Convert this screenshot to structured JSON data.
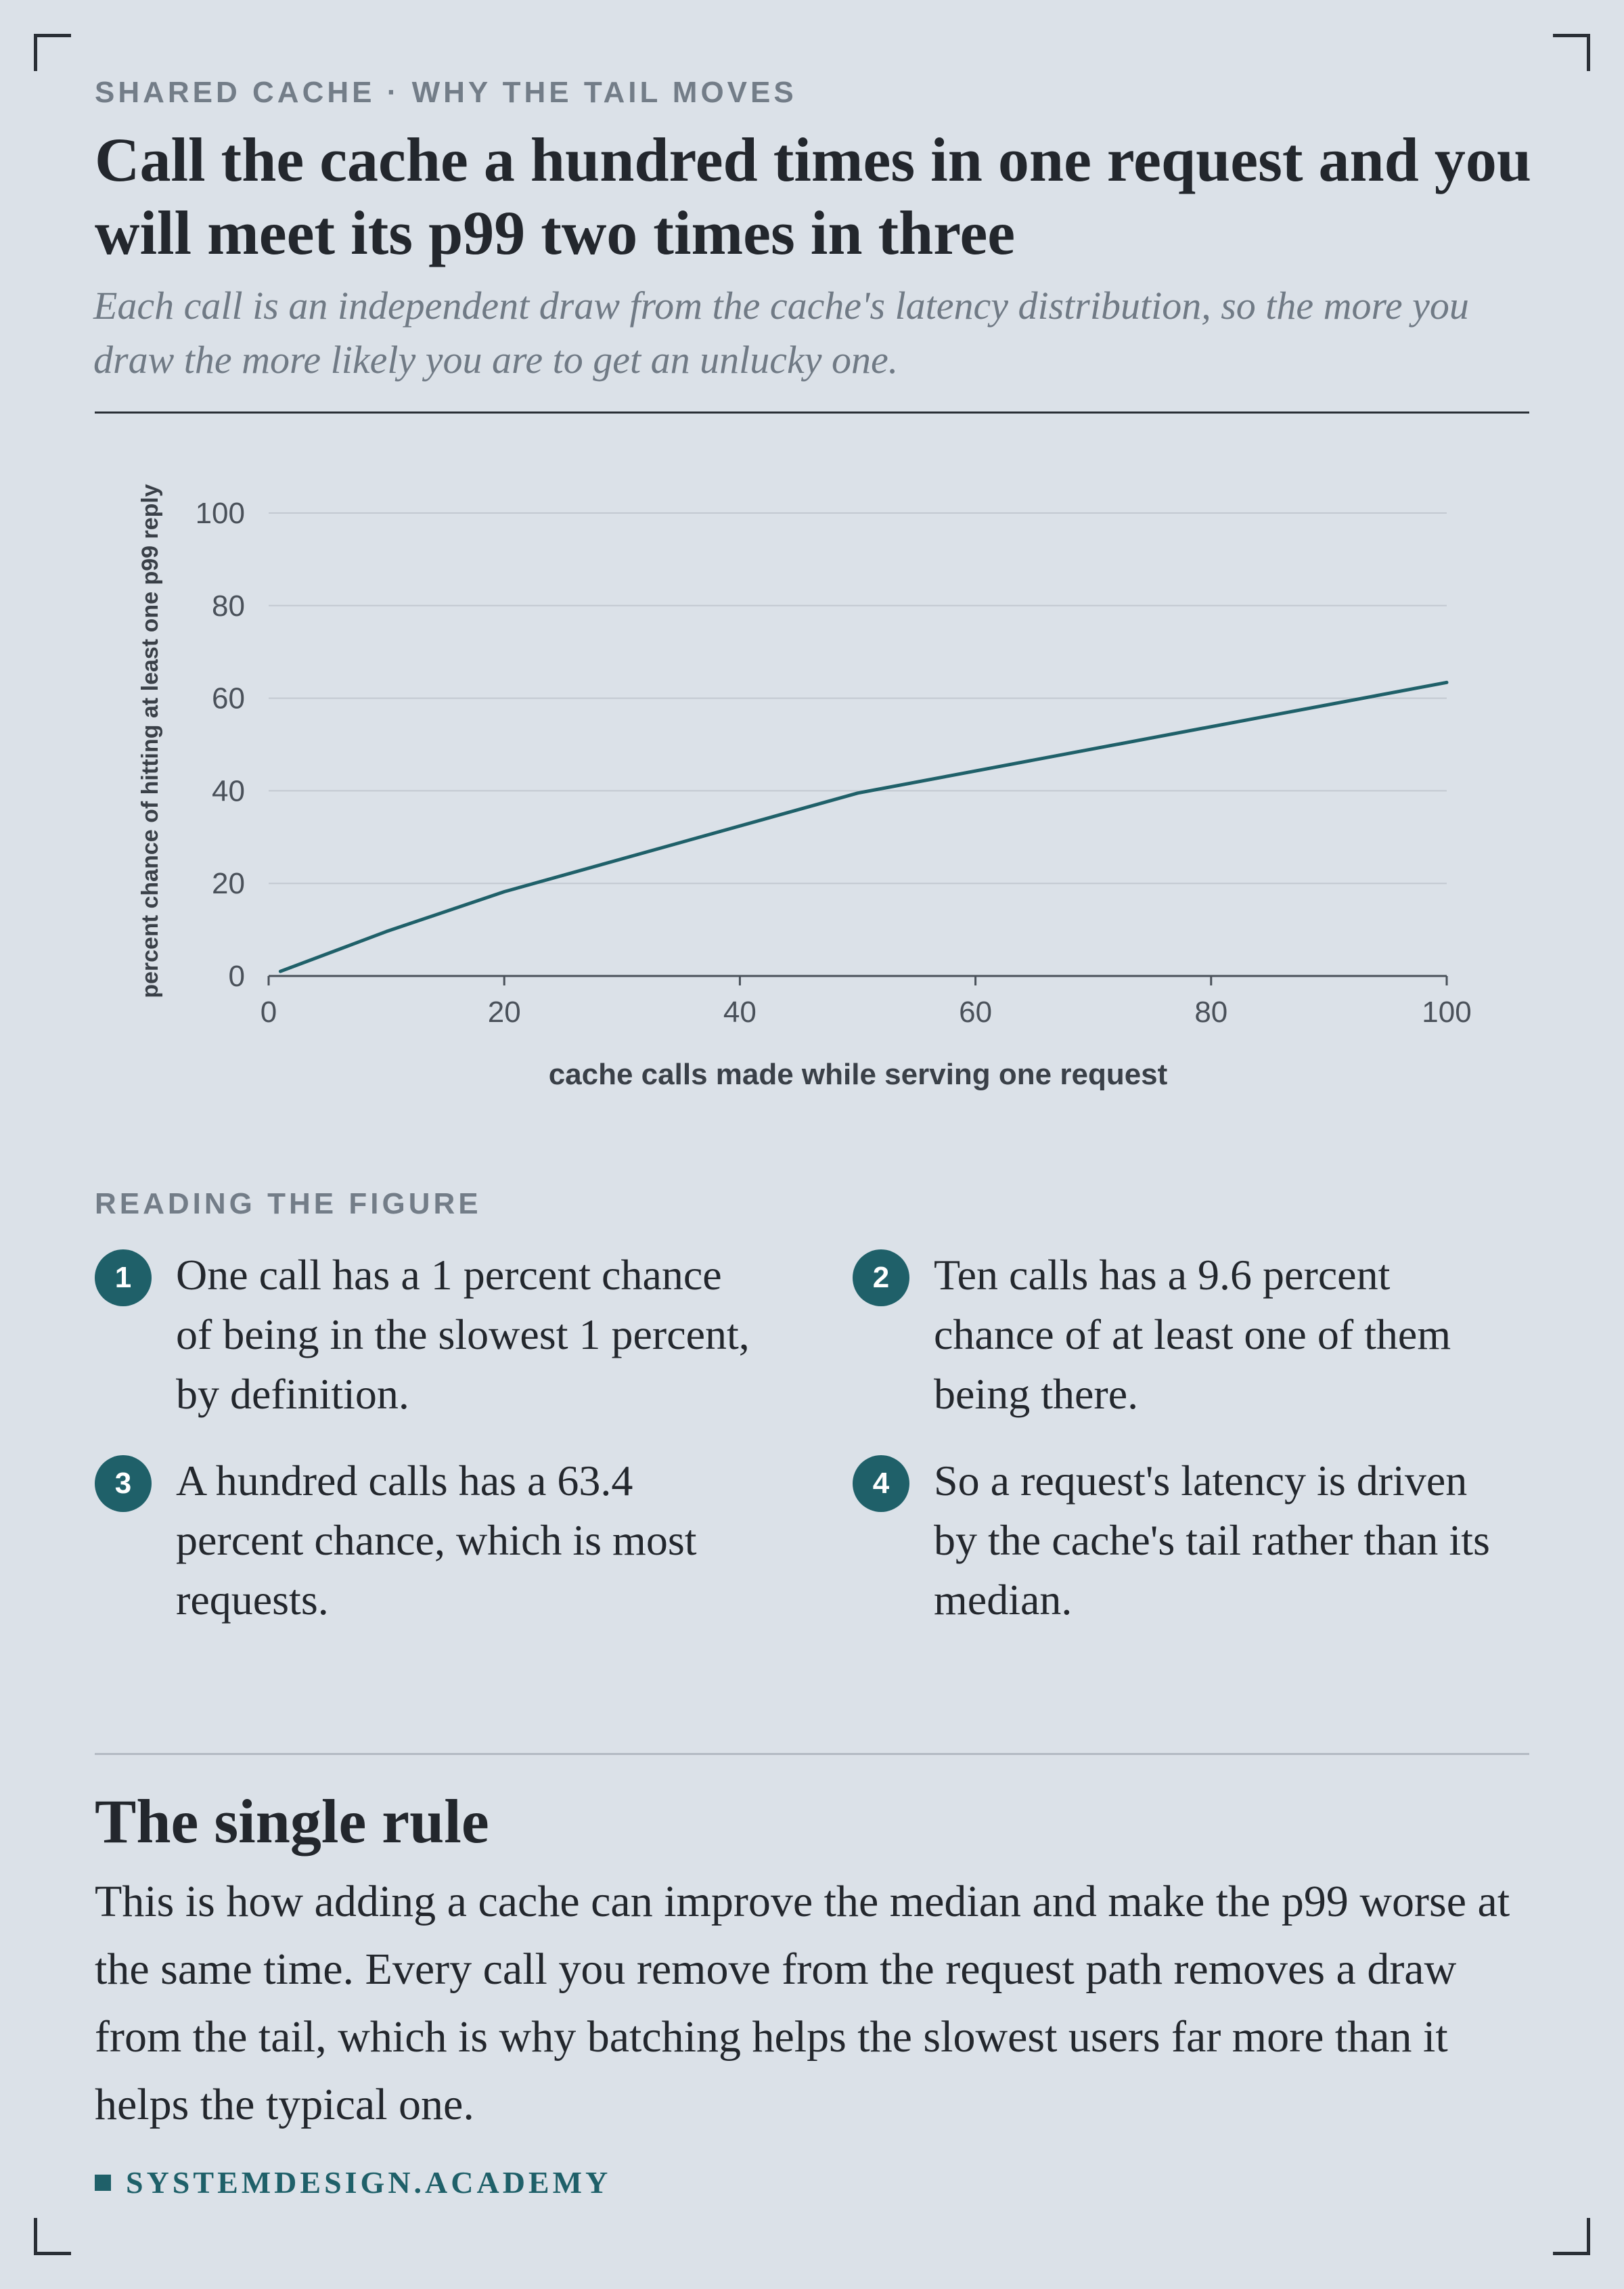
{
  "header": {
    "kicker": "SHARED CACHE · WHY THE TAIL MOVES",
    "title": "Call the cache a hundred times in one request and you will meet its p99 two times in three",
    "subtitle": "Each call is an independent draw from the cache's latency distribution, so the more you draw the more likely you are to get an unlucky one."
  },
  "chart_data": {
    "type": "line",
    "title": "",
    "xlabel": "cache calls made while serving one request",
    "ylabel": "percent chance of hitting at least one p99 reply",
    "xlim": [
      0,
      100
    ],
    "ylim": [
      0,
      100
    ],
    "x_ticks": [
      0,
      20,
      40,
      60,
      80,
      100
    ],
    "y_ticks": [
      0,
      20,
      40,
      60,
      80,
      100
    ],
    "grid": "horizontal",
    "series": [
      {
        "color": "#1f6069",
        "x": [
          1,
          10,
          20,
          50,
          100
        ],
        "y": [
          1,
          9.6,
          18.2,
          39.5,
          63.4
        ]
      }
    ]
  },
  "notes": {
    "label": "READING THE FIGURE",
    "items": [
      {
        "number": "1",
        "text": "One call has a 1 percent chance of being in the slowest 1 percent, by definition."
      },
      {
        "number": "2",
        "text": "Ten calls has a 9.6 percent chance of at least one of them being there."
      },
      {
        "number": "3",
        "text": "A hundred calls has a 63.4 percent chance, which is most requests."
      },
      {
        "number": "4",
        "text": "So a request's latency is driven by the cache's tail rather than its median."
      }
    ]
  },
  "rule": {
    "heading": "The single rule",
    "body": "This is how adding a cache can improve the median and make the p99 worse at the same time. Every call you remove from the request path removes a draw from the tail, which is why batching helps the slowest users far more than it helps the typical one."
  },
  "footer": {
    "brand": "SYSTEMDESIGN.ACADEMY"
  },
  "colors": {
    "background": "#dbe1e8",
    "accent": "#1f6069",
    "text": "#23272d",
    "muted": "#737d88"
  }
}
